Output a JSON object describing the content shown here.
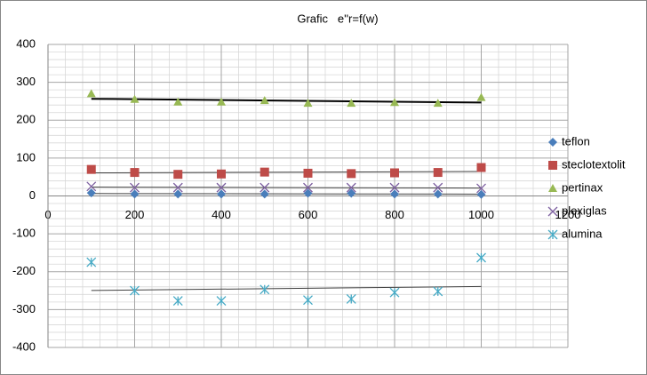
{
  "chart_data": {
    "type": "scatter",
    "title": "Grafic   e''r=f(w)",
    "x": [
      100,
      200,
      300,
      400,
      500,
      600,
      700,
      800,
      900,
      1000
    ],
    "series": [
      {
        "name": "teflon",
        "color": "#4a7ebb",
        "marker": "diamond",
        "values": [
          8,
          5,
          5,
          5,
          5,
          7,
          7,
          5,
          5,
          4
        ]
      },
      {
        "name": "steclotextolit",
        "color": "#be4b48",
        "marker": "square",
        "values": [
          70,
          62,
          57,
          58,
          63,
          60,
          59,
          61,
          62,
          75
        ]
      },
      {
        "name": "pertinax",
        "color": "#98b954",
        "marker": "triangle",
        "values": [
          270,
          255,
          248,
          248,
          252,
          245,
          245,
          247,
          245,
          260
        ]
      },
      {
        "name": "plexiglas",
        "color": "#7d60a0",
        "marker": "cross",
        "values": [
          25,
          22,
          22,
          22,
          22,
          22,
          22,
          22,
          22,
          20
        ]
      },
      {
        "name": "alumina",
        "color": "#46aac5",
        "marker": "star",
        "values": [
          -175,
          -250,
          -277,
          -277,
          -247,
          -275,
          -272,
          -255,
          -252,
          -163
        ]
      }
    ],
    "xlim": [
      0,
      1200
    ],
    "xticks": [
      0,
      200,
      400,
      600,
      800,
      1000,
      1200
    ],
    "ylim": [
      -400,
      400
    ],
    "yticks": [
      -400,
      -300,
      -200,
      -100,
      0,
      100,
      200,
      300,
      400
    ],
    "grid": true,
    "trendline": true,
    "legend": "right"
  }
}
